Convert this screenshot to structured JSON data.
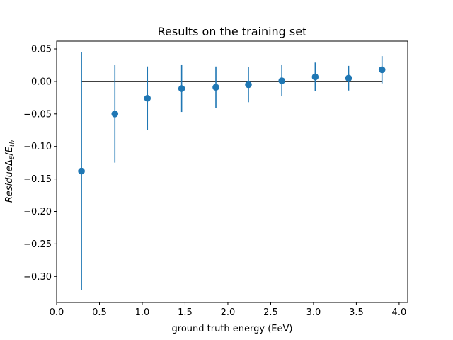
{
  "chart_data": {
    "type": "scatter",
    "title": "Results on the training set",
    "xlabel": "ground truth energy (EeV)",
    "ylabel_main": "Residue",
    "ylabel_sub_delta": "Δ",
    "ylabel_sub_delta_idx": "E",
    "ylabel_slash": "/",
    "ylabel_e": "E",
    "ylabel_e_idx": "th",
    "xlim": [
      0.0,
      4.1
    ],
    "ylim": [
      -0.34,
      0.062
    ],
    "xticks": [
      "0.0",
      "0.5",
      "1.0",
      "1.5",
      "2.0",
      "2.5",
      "3.0",
      "3.5",
      "4.0"
    ],
    "xtick_values": [
      0.0,
      0.5,
      1.0,
      1.5,
      2.0,
      2.5,
      3.0,
      3.5,
      4.0
    ],
    "yticks": [
      "0.05",
      "0.00",
      "−0.05",
      "−0.10",
      "−0.15",
      "−0.20",
      "−0.25",
      "−0.30"
    ],
    "ytick_values": [
      0.05,
      0.0,
      -0.05,
      -0.1,
      -0.15,
      -0.2,
      -0.25,
      -0.3
    ],
    "reference_line": {
      "y": 0.0,
      "x_start": 0.29,
      "x_end": 3.8,
      "color": "#000000"
    },
    "series": [
      {
        "color": "#1f77b4",
        "points": [
          {
            "x": 0.29,
            "y": -0.138,
            "err": 0.183
          },
          {
            "x": 0.68,
            "y": -0.05,
            "err": 0.075
          },
          {
            "x": 1.06,
            "y": -0.026,
            "err": 0.049
          },
          {
            "x": 1.46,
            "y": -0.011,
            "err": 0.036
          },
          {
            "x": 1.86,
            "y": -0.009,
            "err": 0.032
          },
          {
            "x": 2.24,
            "y": -0.005,
            "err": 0.027
          },
          {
            "x": 2.63,
            "y": 0.001,
            "err": 0.024
          },
          {
            "x": 3.02,
            "y": 0.007,
            "err": 0.022
          },
          {
            "x": 3.41,
            "y": 0.005,
            "err": 0.019
          },
          {
            "x": 3.8,
            "y": 0.018,
            "err": 0.021
          }
        ]
      }
    ]
  }
}
